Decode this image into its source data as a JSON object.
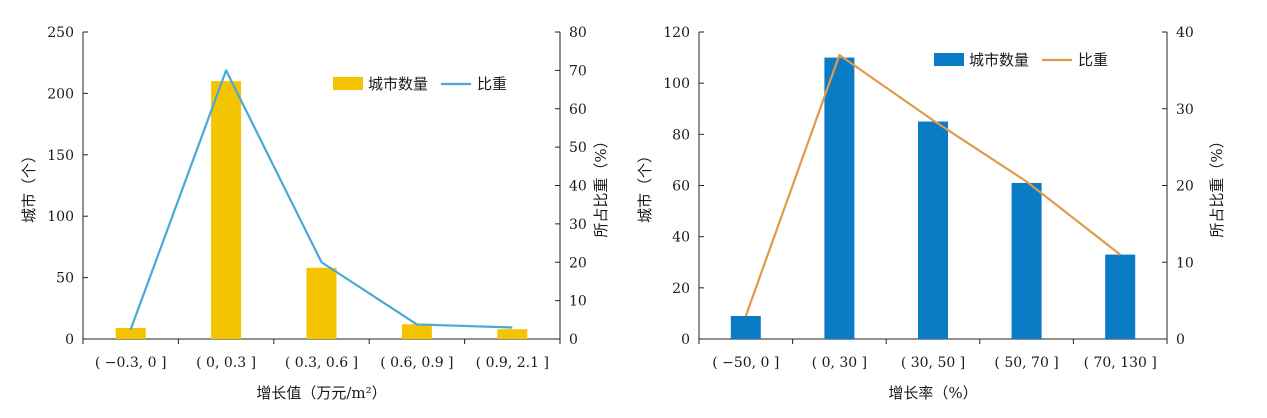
{
  "chart_data": [
    {
      "type": "bar",
      "categories": [
        "( −0.3, 0 ]",
        "( 0, 0.3 ]",
        "( 0.3, 0.6 ]",
        "( 0.6, 0.9 ]",
        "( 0.9, 2.1 ]"
      ],
      "series": [
        {
          "name": "城市数量",
          "kind": "bar",
          "axis": "left",
          "values": [
            9,
            210,
            58,
            12,
            8
          ],
          "color": "#f5c400"
        },
        {
          "name": "比重",
          "kind": "line",
          "axis": "right",
          "values": [
            2.5,
            70,
            20,
            3.8,
            3.0
          ],
          "color": "#4aa8d8"
        }
      ],
      "xlabel": "增长值（万元/m²）",
      "ylabel": "城市（个）",
      "y2label": "所占比重（%）",
      "ylim": [
        0,
        250
      ],
      "yticks": [
        0,
        50,
        100,
        150,
        200,
        250
      ],
      "y2lim": [
        0,
        80
      ],
      "y2ticks": [
        0,
        10,
        20,
        30,
        40,
        50,
        60,
        70,
        80
      ],
      "legend": "top-right",
      "grid": false
    },
    {
      "type": "bar",
      "categories": [
        "( −50, 0 ]",
        "( 0, 30 ]",
        "( 30, 50 ]",
        "( 50, 70 ]",
        "( 70, 130 ]"
      ],
      "series": [
        {
          "name": "城市数量",
          "kind": "bar",
          "axis": "left",
          "values": [
            9,
            110,
            85,
            61,
            33
          ],
          "color": "#0a7cc6"
        },
        {
          "name": "比重",
          "kind": "line",
          "axis": "right",
          "values": [
            3,
            37,
            28.5,
            20.5,
            11
          ],
          "color": "#e09a4a"
        }
      ],
      "xlabel": "增长率（%）",
      "ylabel": "城市（个）",
      "y2label": "所占比重（%）",
      "ylim": [
        0,
        120
      ],
      "yticks": [
        0,
        20,
        40,
        60,
        80,
        100,
        120
      ],
      "y2lim": [
        0,
        40
      ],
      "y2ticks": [
        0,
        10,
        20,
        30,
        40
      ],
      "legend": "top-right",
      "grid": false
    }
  ]
}
